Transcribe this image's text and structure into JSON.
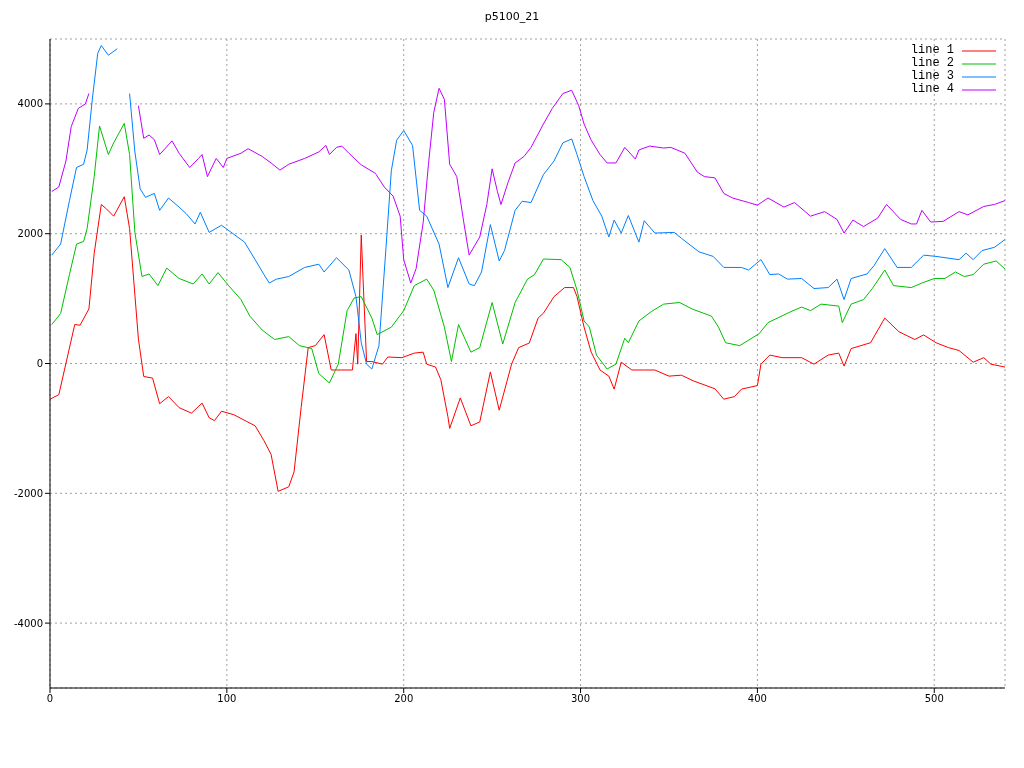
{
  "chart_data": {
    "type": "line",
    "title": "p5100_21",
    "xlim": [
      0,
      540
    ],
    "xticks": [
      0,
      100,
      200,
      300,
      400,
      500
    ],
    "ylim": [
      -5000,
      5000
    ],
    "yticks": [
      -4000,
      -2000,
      0,
      2000,
      4000
    ],
    "grid": true,
    "legend": "top right",
    "line_style": "solid",
    "series": [
      {
        "name": "line 1",
        "color": "#ff0000",
        "x": [
          0,
          5,
          14,
          17,
          22,
          25,
          29,
          32,
          36,
          42,
          45,
          50,
          53,
          58,
          62,
          67,
          73,
          80,
          86,
          90,
          93,
          97,
          104,
          111,
          116,
          121,
          125,
          129,
          135,
          138,
          142,
          146,
          150,
          155,
          159,
          165,
          171,
          173,
          174,
          176,
          177,
          179,
          182,
          188,
          191,
          199,
          206,
          211,
          213,
          218,
          221,
          225,
          226,
          232,
          238,
          243,
          249,
          254,
          261,
          265,
          271,
          276,
          279,
          285,
          291,
          296,
          298,
          302,
          306,
          311,
          316,
          319,
          323,
          329,
          336,
          342,
          350,
          357,
          364,
          376,
          381,
          387,
          391,
          400,
          402,
          407,
          414,
          425,
          432,
          440,
          446,
          449,
          453,
          464,
          472,
          480,
          489,
          494,
          501,
          508,
          514,
          522,
          528,
          532,
          540
        ],
        "values": [
          -550,
          -480,
          600,
          590,
          840,
          1700,
          2450,
          2380,
          2270,
          2570,
          2080,
          375,
          -200,
          -225,
          -620,
          -510,
          -680,
          -765,
          -610,
          -835,
          -880,
          -735,
          -790,
          -890,
          -960,
          -1190,
          -1400,
          -1970,
          -1900,
          -1670,
          -680,
          245,
          275,
          445,
          -100,
          -100,
          -100,
          460,
          -10,
          1980,
          1310,
          30,
          30,
          -10,
          100,
          90,
          160,
          175,
          -10,
          -55,
          -250,
          -820,
          -1000,
          -530,
          -960,
          -900,
          -130,
          -720,
          -10,
          245,
          315,
          700,
          775,
          1030,
          1170,
          1170,
          1030,
          560,
          175,
          -100,
          -195,
          -395,
          20,
          -100,
          -100,
          -100,
          -195,
          -180,
          -270,
          -390,
          -550,
          -510,
          -395,
          -340,
          -10,
          130,
          90,
          90,
          -10,
          130,
          160,
          -40,
          230,
          320,
          700,
          490,
          370,
          440,
          320,
          245,
          200,
          20,
          90,
          -10,
          -55
        ]
      },
      {
        "name": "line 2",
        "color": "#00c000",
        "x": [
          1,
          6,
          11,
          15,
          19,
          21,
          25,
          28,
          33,
          36,
          42,
          45,
          48,
          52,
          56,
          61,
          66,
          73,
          81,
          86,
          90,
          95,
          101,
          108,
          113,
          120,
          127,
          135,
          141,
          148,
          152,
          158,
          163,
          168,
          172,
          176,
          182,
          185,
          193,
          200,
          206,
          213,
          217,
          223,
          227,
          231,
          238,
          243,
          250,
          256,
          263,
          270,
          274,
          279,
          289,
          294,
          298,
          302,
          305,
          309,
          315,
          320,
          325,
          327,
          333,
          340,
          347,
          356,
          363,
          374,
          378,
          382,
          390,
          401,
          406,
          419,
          425,
          430,
          436,
          446,
          448,
          453,
          460,
          465,
          472,
          477,
          487,
          493,
          500,
          506,
          512,
          517,
          522,
          528,
          535,
          540
        ],
        "values": [
          600,
          770,
          1370,
          1840,
          1880,
          2080,
          2880,
          3660,
          3220,
          3400,
          3700,
          3220,
          2020,
          1340,
          1380,
          1200,
          1470,
          1310,
          1225,
          1380,
          1225,
          1400,
          1200,
          985,
          730,
          515,
          370,
          415,
          275,
          230,
          -155,
          -300,
          -10,
          815,
          1010,
          1030,
          700,
          445,
          560,
          815,
          1200,
          1300,
          1130,
          560,
          30,
          600,
          175,
          245,
          940,
          300,
          940,
          1300,
          1370,
          1610,
          1600,
          1480,
          1130,
          655,
          560,
          130,
          -85,
          -10,
          390,
          320,
          655,
          800,
          915,
          940,
          840,
          730,
          560,
          320,
          275,
          460,
          630,
          800,
          870,
          815,
          915,
          885,
          630,
          915,
          985,
          1155,
          1440,
          1200,
          1170,
          1240,
          1310,
          1310,
          1410,
          1340,
          1370,
          1530,
          1580,
          1455
        ]
      },
      {
        "name": "line 3",
        "color": "#0080ff",
        "x": [
          1,
          6,
          11,
          15,
          19,
          21,
          24,
          27,
          29,
          33,
          38,
          40,
          42,
          44,
          45,
          48,
          51,
          54,
          59,
          62,
          67,
          73,
          77,
          82,
          85,
          90,
          97,
          103,
          110,
          116,
          121,
          124,
          128,
          135,
          144,
          152,
          155,
          162,
          169,
          173,
          176,
          179,
          182,
          186,
          190,
          193,
          196,
          200,
          205,
          209,
          213,
          220,
          225,
          231,
          237,
          240,
          244,
          249,
          254,
          257,
          263,
          267,
          272,
          279,
          285,
          290,
          295,
          298,
          302,
          307,
          312,
          316,
          319,
          323,
          327,
          333,
          336,
          342,
          353,
          357,
          367,
          375,
          381,
          391,
          395,
          402,
          407,
          412,
          417,
          425,
          432,
          440,
          445,
          449,
          453,
          462,
          466,
          472,
          479,
          487,
          494,
          501,
          514,
          518,
          522,
          527,
          534,
          540
        ],
        "values": [
          1670,
          1840,
          2510,
          3020,
          3070,
          3290,
          4090,
          4780,
          4900,
          4750,
          4850,
          null,
          null,
          null,
          4160,
          3260,
          2690,
          2560,
          2620,
          2360,
          2550,
          2410,
          2310,
          2150,
          2330,
          2020,
          2130,
          2010,
          1870,
          1600,
          1370,
          1240,
          1300,
          1340,
          1480,
          1530,
          1410,
          1630,
          1440,
          1030,
          320,
          -10,
          -85,
          275,
          1790,
          2970,
          3440,
          3590,
          3360,
          2360,
          2270,
          1840,
          1170,
          1630,
          1225,
          1200,
          1410,
          2140,
          1580,
          1740,
          2360,
          2500,
          2480,
          2910,
          3120,
          3400,
          3460,
          3220,
          2880,
          2510,
          2270,
          1950,
          2210,
          2010,
          2280,
          1870,
          2200,
          2010,
          2020,
          1930,
          1720,
          1650,
          1480,
          1480,
          1440,
          1600,
          1370,
          1380,
          1300,
          1310,
          1155,
          1170,
          1300,
          985,
          1310,
          1380,
          1510,
          1770,
          1480,
          1480,
          1670,
          1650,
          1600,
          1700,
          1600,
          1740,
          1790,
          1910
        ]
      },
      {
        "name": "line 4",
        "color": "#c000ff",
        "x": [
          1,
          5,
          9,
          12,
          16,
          20,
          22,
          24,
          35,
          47,
          50,
          53,
          56,
          59,
          62,
          69,
          73,
          79,
          84,
          86,
          89,
          94,
          98,
          100,
          108,
          112,
          120,
          125,
          130,
          135,
          144,
          152,
          156,
          158,
          162,
          165,
          169,
          176,
          184,
          189,
          194,
          198,
          200,
          204,
          207,
          211,
          214,
          217,
          220,
          223,
          226,
          230,
          234,
          237,
          243,
          247,
          250,
          253,
          255,
          259,
          263,
          268,
          272,
          279,
          284,
          290,
          295,
          299,
          302,
          306,
          311,
          315,
          320,
          325,
          331,
          333,
          339,
          347,
          351,
          359,
          366,
          370,
          376,
          381,
          386,
          395,
          400,
          406,
          415,
          421,
          430,
          438,
          445,
          449,
          454,
          460,
          468,
          473,
          481,
          487,
          490,
          493,
          498,
          505,
          514,
          519,
          528,
          534,
          540
        ],
        "values": [
          2650,
          2720,
          3120,
          3650,
          3930,
          4000,
          4160,
          null,
          null,
          null,
          3970,
          3470,
          3520,
          3450,
          3220,
          3430,
          3240,
          3020,
          3160,
          3220,
          2880,
          3160,
          3020,
          3160,
          3240,
          3310,
          3190,
          3090,
          2980,
          3070,
          3160,
          3260,
          3360,
          3220,
          3330,
          3350,
          3240,
          3060,
          2930,
          2720,
          2580,
          2270,
          1600,
          1240,
          1460,
          2170,
          3070,
          3870,
          4240,
          4070,
          3070,
          2880,
          2170,
          1670,
          1950,
          2450,
          3000,
          2650,
          2450,
          2790,
          3090,
          3190,
          3330,
          3690,
          3930,
          4160,
          4210,
          3970,
          3690,
          3440,
          3220,
          3090,
          3090,
          3330,
          3150,
          3290,
          3350,
          3320,
          3330,
          3240,
          2950,
          2880,
          2860,
          2620,
          2550,
          2480,
          2440,
          2550,
          2410,
          2480,
          2270,
          2340,
          2220,
          2010,
          2210,
          2110,
          2240,
          2450,
          2220,
          2150,
          2150,
          2360,
          2180,
          2190,
          2340,
          2290,
          2420,
          2450,
          2510
        ]
      }
    ]
  }
}
